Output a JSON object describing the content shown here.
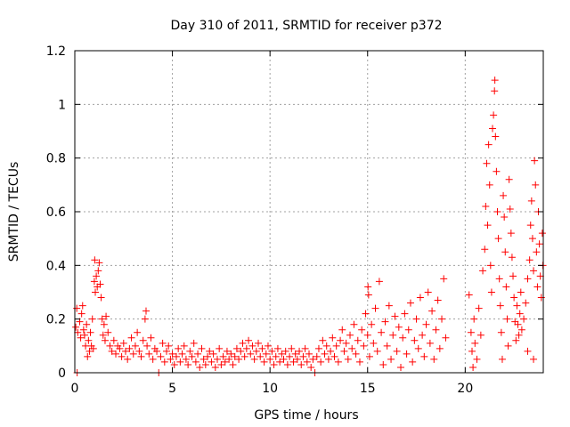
{
  "chart_data": {
    "type": "scatter",
    "title": "Day 310 of 2011, SRMTID for receiver p372",
    "xlabel": "GPS time / hours",
    "ylabel": "SRMTID / TECUs",
    "xlim": [
      0,
      24
    ],
    "ylim": [
      0,
      1.2
    ],
    "xticks": [
      0,
      5,
      10,
      15,
      20
    ],
    "xtick_labels": [
      "0",
      "5",
      "10",
      "15",
      "20"
    ],
    "yticks": [
      0,
      0.2,
      0.4,
      0.6,
      0.8,
      1,
      1.2
    ],
    "ytick_labels": [
      "0",
      "0.2",
      "0.4",
      "0.6",
      "0.8",
      "1",
      "1.2"
    ],
    "grid": true,
    "marker": "+",
    "series": [
      {
        "name": "SRMTID",
        "color": "#ff0000",
        "points": [
          [
            0.05,
            0.17
          ],
          [
            0.1,
            0.24
          ],
          [
            0.12,
            0.0
          ],
          [
            0.15,
            0.15
          ],
          [
            0.25,
            0.19
          ],
          [
            0.3,
            0.13
          ],
          [
            0.35,
            0.22
          ],
          [
            0.4,
            0.25
          ],
          [
            0.45,
            0.16
          ],
          [
            0.5,
            0.14
          ],
          [
            0.55,
            0.1
          ],
          [
            0.6,
            0.18
          ],
          [
            0.65,
            0.06
          ],
          [
            0.7,
            0.12
          ],
          [
            0.75,
            0.08
          ],
          [
            0.8,
            0.15
          ],
          [
            0.85,
            0.1
          ],
          [
            0.9,
            0.2
          ],
          [
            0.95,
            0.09
          ],
          [
            1.0,
            0.34
          ],
          [
            1.02,
            0.42
          ],
          [
            1.05,
            0.3
          ],
          [
            1.1,
            0.36
          ],
          [
            1.15,
            0.32
          ],
          [
            1.2,
            0.38
          ],
          [
            1.25,
            0.41
          ],
          [
            1.3,
            0.33
          ],
          [
            1.35,
            0.28
          ],
          [
            1.4,
            0.2
          ],
          [
            1.45,
            0.14
          ],
          [
            1.5,
            0.18
          ],
          [
            1.55,
            0.12
          ],
          [
            1.6,
            0.21
          ],
          [
            1.7,
            0.15
          ],
          [
            1.8,
            0.1
          ],
          [
            1.9,
            0.08
          ],
          [
            2.0,
            0.12
          ],
          [
            2.1,
            0.07
          ],
          [
            2.2,
            0.1
          ],
          [
            2.3,
            0.09
          ],
          [
            2.4,
            0.06
          ],
          [
            2.5,
            0.11
          ],
          [
            2.6,
            0.08
          ],
          [
            2.7,
            0.05
          ],
          [
            2.8,
            0.09
          ],
          [
            2.9,
            0.13
          ],
          [
            3.0,
            0.07
          ],
          [
            3.1,
            0.1
          ],
          [
            3.2,
            0.15
          ],
          [
            3.3,
            0.08
          ],
          [
            3.4,
            0.06
          ],
          [
            3.5,
            0.12
          ],
          [
            3.6,
            0.2
          ],
          [
            3.65,
            0.23
          ],
          [
            3.7,
            0.1
          ],
          [
            3.8,
            0.07
          ],
          [
            3.9,
            0.13
          ],
          [
            4.0,
            0.05
          ],
          [
            4.1,
            0.09
          ],
          [
            4.2,
            0.08
          ],
          [
            4.3,
            0.0
          ],
          [
            4.4,
            0.06
          ],
          [
            4.5,
            0.11
          ],
          [
            4.6,
            0.04
          ],
          [
            4.7,
            0.08
          ],
          [
            4.8,
            0.1
          ],
          [
            4.9,
            0.05
          ],
          [
            5.0,
            0.07
          ],
          [
            5.1,
            0.03
          ],
          [
            5.2,
            0.06
          ],
          [
            5.3,
            0.09
          ],
          [
            5.4,
            0.04
          ],
          [
            5.5,
            0.07
          ],
          [
            5.6,
            0.1
          ],
          [
            5.7,
            0.05
          ],
          [
            5.8,
            0.03
          ],
          [
            5.9,
            0.08
          ],
          [
            6.0,
            0.06
          ],
          [
            6.1,
            0.11
          ],
          [
            6.2,
            0.04
          ],
          [
            6.3,
            0.07
          ],
          [
            6.4,
            0.02
          ],
          [
            6.5,
            0.09
          ],
          [
            6.6,
            0.05
          ],
          [
            6.7,
            0.03
          ],
          [
            6.8,
            0.06
          ],
          [
            6.9,
            0.08
          ],
          [
            7.0,
            0.04
          ],
          [
            7.1,
            0.07
          ],
          [
            7.2,
            0.02
          ],
          [
            7.3,
            0.05
          ],
          [
            7.4,
            0.09
          ],
          [
            7.5,
            0.03
          ],
          [
            7.6,
            0.06
          ],
          [
            7.7,
            0.04
          ],
          [
            7.8,
            0.08
          ],
          [
            7.9,
            0.05
          ],
          [
            8.0,
            0.07
          ],
          [
            8.1,
            0.03
          ],
          [
            8.2,
            0.06
          ],
          [
            8.3,
            0.09
          ],
          [
            8.4,
            0.05
          ],
          [
            8.5,
            0.08
          ],
          [
            8.6,
            0.11
          ],
          [
            8.7,
            0.06
          ],
          [
            8.8,
            0.09
          ],
          [
            8.9,
            0.12
          ],
          [
            9.0,
            0.07
          ],
          [
            9.1,
            0.1
          ],
          [
            9.2,
            0.05
          ],
          [
            9.3,
            0.08
          ],
          [
            9.4,
            0.11
          ],
          [
            9.5,
            0.06
          ],
          [
            9.6,
            0.09
          ],
          [
            9.7,
            0.04
          ],
          [
            9.8,
            0.07
          ],
          [
            9.9,
            0.1
          ],
          [
            10.0,
            0.05
          ],
          [
            10.1,
            0.08
          ],
          [
            10.2,
            0.03
          ],
          [
            10.3,
            0.06
          ],
          [
            10.4,
            0.09
          ],
          [
            10.5,
            0.04
          ],
          [
            10.6,
            0.07
          ],
          [
            10.7,
            0.05
          ],
          [
            10.8,
            0.08
          ],
          [
            10.9,
            0.03
          ],
          [
            11.0,
            0.06
          ],
          [
            11.1,
            0.09
          ],
          [
            11.2,
            0.04
          ],
          [
            11.3,
            0.07
          ],
          [
            11.4,
            0.05
          ],
          [
            11.5,
            0.08
          ],
          [
            11.6,
            0.03
          ],
          [
            11.7,
            0.06
          ],
          [
            11.8,
            0.09
          ],
          [
            11.9,
            0.04
          ],
          [
            12.0,
            0.07
          ],
          [
            12.1,
            0.02
          ],
          [
            12.2,
            0.05
          ],
          [
            12.3,
            0.0
          ],
          [
            12.4,
            0.06
          ],
          [
            12.5,
            0.09
          ],
          [
            12.6,
            0.04
          ],
          [
            12.7,
            0.12
          ],
          [
            12.8,
            0.07
          ],
          [
            12.9,
            0.1
          ],
          [
            13.0,
            0.05
          ],
          [
            13.1,
            0.08
          ],
          [
            13.2,
            0.13
          ],
          [
            13.3,
            0.06
          ],
          [
            13.4,
            0.1
          ],
          [
            13.5,
            0.04
          ],
          [
            13.6,
            0.12
          ],
          [
            13.7,
            0.16
          ],
          [
            13.8,
            0.08
          ],
          [
            13.9,
            0.11
          ],
          [
            14.0,
            0.05
          ],
          [
            14.1,
            0.14
          ],
          [
            14.2,
            0.09
          ],
          [
            14.3,
            0.18
          ],
          [
            14.4,
            0.07
          ],
          [
            14.5,
            0.12
          ],
          [
            14.6,
            0.04
          ],
          [
            14.7,
            0.16
          ],
          [
            14.8,
            0.1
          ],
          [
            14.9,
            0.22
          ],
          [
            15.0,
            0.14
          ],
          [
            15.02,
            0.32
          ],
          [
            15.05,
            0.29
          ],
          [
            15.1,
            0.06
          ],
          [
            15.2,
            0.18
          ],
          [
            15.3,
            0.11
          ],
          [
            15.4,
            0.24
          ],
          [
            15.5,
            0.08
          ],
          [
            15.6,
            0.34
          ],
          [
            15.7,
            0.15
          ],
          [
            15.8,
            0.03
          ],
          [
            15.9,
            0.19
          ],
          [
            16.0,
            0.1
          ],
          [
            16.1,
            0.25
          ],
          [
            16.2,
            0.05
          ],
          [
            16.3,
            0.14
          ],
          [
            16.4,
            0.21
          ],
          [
            16.5,
            0.08
          ],
          [
            16.6,
            0.17
          ],
          [
            16.7,
            0.02
          ],
          [
            16.8,
            0.13
          ],
          [
            16.9,
            0.22
          ],
          [
            17.0,
            0.07
          ],
          [
            17.1,
            0.16
          ],
          [
            17.2,
            0.26
          ],
          [
            17.3,
            0.04
          ],
          [
            17.4,
            0.12
          ],
          [
            17.5,
            0.2
          ],
          [
            17.6,
            0.09
          ],
          [
            17.7,
            0.28
          ],
          [
            17.8,
            0.14
          ],
          [
            17.9,
            0.06
          ],
          [
            18.0,
            0.18
          ],
          [
            18.1,
            0.3
          ],
          [
            18.2,
            0.11
          ],
          [
            18.3,
            0.23
          ],
          [
            18.4,
            0.05
          ],
          [
            18.5,
            0.16
          ],
          [
            18.6,
            0.27
          ],
          [
            18.7,
            0.09
          ],
          [
            18.8,
            0.2
          ],
          [
            18.9,
            0.35
          ],
          [
            19.0,
            0.13
          ],
          [
            20.2,
            0.29
          ],
          [
            20.3,
            0.15
          ],
          [
            20.35,
            0.08
          ],
          [
            20.4,
            0.02
          ],
          [
            20.45,
            0.2
          ],
          [
            20.5,
            0.11
          ],
          [
            20.6,
            0.05
          ],
          [
            20.7,
            0.24
          ],
          [
            20.8,
            0.14
          ],
          [
            20.9,
            0.38
          ],
          [
            21.0,
            0.46
          ],
          [
            21.05,
            0.62
          ],
          [
            21.1,
            0.78
          ],
          [
            21.15,
            0.55
          ],
          [
            21.2,
            0.85
          ],
          [
            21.25,
            0.7
          ],
          [
            21.3,
            0.4
          ],
          [
            21.35,
            0.3
          ],
          [
            21.4,
            0.91
          ],
          [
            21.45,
            0.96
          ],
          [
            21.5,
            1.05
          ],
          [
            21.52,
            1.09
          ],
          [
            21.55,
            0.88
          ],
          [
            21.6,
            0.75
          ],
          [
            21.65,
            0.6
          ],
          [
            21.7,
            0.5
          ],
          [
            21.75,
            0.35
          ],
          [
            21.8,
            0.25
          ],
          [
            21.85,
            0.15
          ],
          [
            21.9,
            0.05
          ],
          [
            21.95,
            0.66
          ],
          [
            22.0,
            0.58
          ],
          [
            22.05,
            0.45
          ],
          [
            22.1,
            0.32
          ],
          [
            22.15,
            0.2
          ],
          [
            22.2,
            0.1
          ],
          [
            22.25,
            0.72
          ],
          [
            22.3,
            0.61
          ],
          [
            22.35,
            0.52
          ],
          [
            22.4,
            0.43
          ],
          [
            22.45,
            0.36
          ],
          [
            22.5,
            0.28
          ],
          [
            22.55,
            0.19
          ],
          [
            22.6,
            0.12
          ],
          [
            22.65,
            0.25
          ],
          [
            22.7,
            0.18
          ],
          [
            22.75,
            0.14
          ],
          [
            22.8,
            0.22
          ],
          [
            22.85,
            0.3
          ],
          [
            22.9,
            0.16
          ],
          [
            23.0,
            0.2
          ],
          [
            23.1,
            0.26
          ],
          [
            23.2,
            0.35
          ],
          [
            23.3,
            0.42
          ],
          [
            23.35,
            0.55
          ],
          [
            23.4,
            0.64
          ],
          [
            23.45,
            0.5
          ],
          [
            23.5,
            0.38
          ],
          [
            23.55,
            0.79
          ],
          [
            23.6,
            0.7
          ],
          [
            23.65,
            0.45
          ],
          [
            23.7,
            0.32
          ],
          [
            23.75,
            0.6
          ],
          [
            23.8,
            0.48
          ],
          [
            23.85,
            0.36
          ],
          [
            23.9,
            0.28
          ],
          [
            23.95,
            0.52
          ],
          [
            23.98,
            0.4
          ],
          [
            23.5,
            0.05
          ],
          [
            23.2,
            0.08
          ]
        ]
      }
    ]
  }
}
